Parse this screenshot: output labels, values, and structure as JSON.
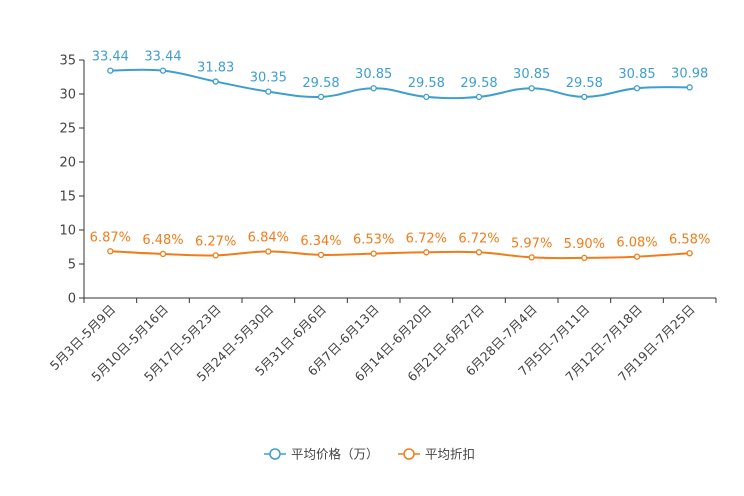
{
  "chart_data": {
    "type": "line",
    "title": "",
    "xlabel": "",
    "ylabel": "",
    "ylim": [
      0,
      35
    ],
    "yticks": [
      0,
      5,
      10,
      15,
      20,
      25,
      30,
      35
    ],
    "grid": false,
    "legend_position": "bottom-center",
    "categories": [
      "5月3日-5月9日",
      "5月10日-5月16日",
      "5月17日-5月23日",
      "5月24日-5月30日",
      "5月31日-6月6日",
      "6月7日-6月13日",
      "6月14日-6月20日",
      "6月21日-6月27日",
      "6月28日-7月4日",
      "7月5日-7月11日",
      "7月12日-7月18日",
      "7月19日-7月25日"
    ],
    "series": [
      {
        "name": "平均价格（万）",
        "color": "#3e9fcf",
        "values": [
          33.44,
          33.44,
          31.83,
          30.35,
          29.58,
          30.85,
          29.58,
          29.58,
          30.85,
          29.58,
          30.85,
          30.98
        ],
        "labels": [
          "33.44",
          "33.44",
          "31.83",
          "30.35",
          "29.58",
          "30.85",
          "29.58",
          "29.58",
          "30.85",
          "29.58",
          "30.85",
          "30.98"
        ]
      },
      {
        "name": "平均折扣",
        "color": "#f07d1a",
        "values": [
          6.87,
          6.48,
          6.27,
          6.84,
          6.34,
          6.53,
          6.72,
          6.72,
          5.97,
          5.9,
          6.08,
          6.58
        ],
        "labels": [
          "6.87%",
          "6.48%",
          "6.27%",
          "6.84%",
          "6.34%",
          "6.53%",
          "6.72%",
          "6.72%",
          "5.97%",
          "5.90%",
          "6.08%",
          "6.58%"
        ]
      }
    ]
  }
}
